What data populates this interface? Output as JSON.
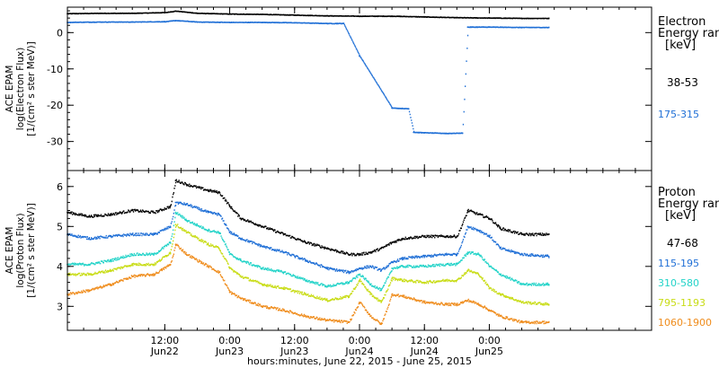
{
  "chart_data": [
    {
      "type": "scatter",
      "title": "",
      "ylabel_lines": [
        "ACE EPAM",
        "log(Electron Flux)",
        "[1/(cm² s ster MeV)]"
      ],
      "ylim": [
        -38,
        7
      ],
      "yticks": [
        0,
        -10,
        -20,
        -30
      ],
      "legend_title": [
        "Electron",
        "Energy  range",
        "[keV]"
      ],
      "legend_placement": "right",
      "series": [
        {
          "name": "38-53",
          "color": "#000000",
          "points": [
            [
              0,
              5.2
            ],
            [
              6,
              5.3
            ],
            [
              12,
              5.3
            ],
            [
              18,
              5.5
            ],
            [
              20,
              5.9
            ],
            [
              24,
              5.3
            ],
            [
              30,
              5.1
            ],
            [
              36,
              5.0
            ],
            [
              42,
              4.8
            ],
            [
              48,
              4.6
            ],
            [
              54,
              4.5
            ],
            [
              60,
              4.5
            ],
            [
              66,
              4.3
            ],
            [
              72,
              4.1
            ],
            [
              78,
              4.0
            ],
            [
              84,
              3.9
            ],
            [
              89,
              3.9
            ]
          ]
        },
        {
          "name": "175-315",
          "color": "#1f6fd6",
          "points": [
            [
              0,
              2.8
            ],
            [
              6,
              2.9
            ],
            [
              12,
              2.9
            ],
            [
              18,
              3.0
            ],
            [
              20,
              3.3
            ],
            [
              24,
              2.9
            ],
            [
              30,
              2.8
            ],
            [
              36,
              2.8
            ],
            [
              42,
              2.7
            ],
            [
              48,
              2.5
            ],
            [
              51,
              2.5
            ],
            [
              54,
              -6.5
            ],
            [
              60,
              -20.8
            ],
            [
              63,
              -21.0
            ],
            [
              64,
              -27.5
            ],
            [
              66,
              -27.6
            ],
            [
              70,
              -27.8
            ],
            [
              73,
              -27.7
            ],
            [
              74,
              1.5
            ],
            [
              78,
              1.5
            ],
            [
              84,
              1.4
            ],
            [
              89,
              1.4
            ]
          ]
        }
      ]
    },
    {
      "type": "scatter",
      "title": "",
      "ylabel_lines": [
        "ACE EPAM",
        "log(Proton Flux)",
        "[1/(cm² s ster MeV)]"
      ],
      "ylim": [
        2.4,
        6.4
      ],
      "yticks": [
        6,
        5,
        4,
        3
      ],
      "legend_title": [
        "Proton",
        "Energy  range",
        "[keV]"
      ],
      "legend_placement": "right",
      "series": [
        {
          "name": "47-68",
          "color": "#000000",
          "points": [
            [
              0,
              5.35
            ],
            [
              4,
              5.25
            ],
            [
              8,
              5.3
            ],
            [
              12,
              5.4
            ],
            [
              16,
              5.35
            ],
            [
              19,
              5.5
            ],
            [
              20,
              6.15
            ],
            [
              22,
              6.05
            ],
            [
              26,
              5.9
            ],
            [
              28,
              5.85
            ],
            [
              30,
              5.5
            ],
            [
              32,
              5.2
            ],
            [
              36,
              5.0
            ],
            [
              40,
              4.8
            ],
            [
              44,
              4.6
            ],
            [
              48,
              4.45
            ],
            [
              52,
              4.3
            ],
            [
              54,
              4.3
            ],
            [
              56,
              4.35
            ],
            [
              58,
              4.45
            ],
            [
              60,
              4.6
            ],
            [
              62,
              4.7
            ],
            [
              66,
              4.75
            ],
            [
              70,
              4.75
            ],
            [
              72,
              4.75
            ],
            [
              74,
              5.4
            ],
            [
              76,
              5.3
            ],
            [
              78,
              5.2
            ],
            [
              80,
              4.95
            ],
            [
              84,
              4.8
            ],
            [
              89,
              4.8
            ]
          ]
        },
        {
          "name": "115-195",
          "color": "#1f6fd6",
          "points": [
            [
              0,
              4.8
            ],
            [
              4,
              4.7
            ],
            [
              8,
              4.75
            ],
            [
              12,
              4.8
            ],
            [
              16,
              4.8
            ],
            [
              19,
              5.0
            ],
            [
              20,
              5.6
            ],
            [
              22,
              5.55
            ],
            [
              26,
              5.35
            ],
            [
              28,
              5.3
            ],
            [
              30,
              4.85
            ],
            [
              32,
              4.7
            ],
            [
              36,
              4.5
            ],
            [
              40,
              4.35
            ],
            [
              44,
              4.15
            ],
            [
              48,
              3.95
            ],
            [
              52,
              3.85
            ],
            [
              54,
              3.95
            ],
            [
              56,
              4.0
            ],
            [
              58,
              3.9
            ],
            [
              60,
              4.1
            ],
            [
              62,
              4.2
            ],
            [
              66,
              4.25
            ],
            [
              70,
              4.3
            ],
            [
              72,
              4.3
            ],
            [
              74,
              5.0
            ],
            [
              76,
              4.9
            ],
            [
              78,
              4.75
            ],
            [
              80,
              4.45
            ],
            [
              84,
              4.3
            ],
            [
              89,
              4.25
            ]
          ]
        },
        {
          "name": "310-580",
          "color": "#22d3c8",
          "points": [
            [
              0,
              4.05
            ],
            [
              4,
              4.05
            ],
            [
              8,
              4.15
            ],
            [
              12,
              4.3
            ],
            [
              16,
              4.3
            ],
            [
              19,
              4.6
            ],
            [
              20,
              5.35
            ],
            [
              22,
              5.15
            ],
            [
              26,
              4.9
            ],
            [
              28,
              4.85
            ],
            [
              30,
              4.3
            ],
            [
              32,
              4.15
            ],
            [
              36,
              3.95
            ],
            [
              40,
              3.85
            ],
            [
              44,
              3.65
            ],
            [
              48,
              3.5
            ],
            [
              52,
              3.6
            ],
            [
              54,
              3.8
            ],
            [
              56,
              3.55
            ],
            [
              58,
              3.4
            ],
            [
              60,
              3.95
            ],
            [
              62,
              4.0
            ],
            [
              66,
              4.0
            ],
            [
              70,
              4.05
            ],
            [
              72,
              4.05
            ],
            [
              74,
              4.35
            ],
            [
              76,
              4.3
            ],
            [
              78,
              4.0
            ],
            [
              80,
              3.8
            ],
            [
              84,
              3.55
            ],
            [
              89,
              3.55
            ]
          ]
        },
        {
          "name": "795-1193",
          "color": "#c8dc14",
          "points": [
            [
              0,
              3.8
            ],
            [
              4,
              3.8
            ],
            [
              8,
              3.9
            ],
            [
              12,
              4.05
            ],
            [
              16,
              4.05
            ],
            [
              19,
              4.35
            ],
            [
              20,
              5.05
            ],
            [
              22,
              4.85
            ],
            [
              26,
              4.55
            ],
            [
              28,
              4.45
            ],
            [
              30,
              3.95
            ],
            [
              32,
              3.75
            ],
            [
              36,
              3.55
            ],
            [
              40,
              3.45
            ],
            [
              44,
              3.3
            ],
            [
              48,
              3.15
            ],
            [
              52,
              3.25
            ],
            [
              54,
              3.65
            ],
            [
              56,
              3.3
            ],
            [
              58,
              3.1
            ],
            [
              60,
              3.7
            ],
            [
              62,
              3.65
            ],
            [
              66,
              3.6
            ],
            [
              70,
              3.65
            ],
            [
              72,
              3.65
            ],
            [
              74,
              3.9
            ],
            [
              76,
              3.8
            ],
            [
              78,
              3.45
            ],
            [
              80,
              3.3
            ],
            [
              84,
              3.1
            ],
            [
              89,
              3.05
            ]
          ]
        },
        {
          "name": "1060-1900",
          "color": "#ef8c1c",
          "points": [
            [
              0,
              3.3
            ],
            [
              4,
              3.4
            ],
            [
              8,
              3.55
            ],
            [
              12,
              3.75
            ],
            [
              16,
              3.8
            ],
            [
              19,
              4.05
            ],
            [
              20,
              4.55
            ],
            [
              22,
              4.3
            ],
            [
              26,
              4.0
            ],
            [
              28,
              3.85
            ],
            [
              30,
              3.35
            ],
            [
              32,
              3.2
            ],
            [
              36,
              3.0
            ],
            [
              40,
              2.9
            ],
            [
              44,
              2.75
            ],
            [
              48,
              2.65
            ],
            [
              52,
              2.6
            ],
            [
              54,
              3.1
            ],
            [
              56,
              2.75
            ],
            [
              58,
              2.55
            ],
            [
              60,
              3.3
            ],
            [
              62,
              3.25
            ],
            [
              66,
              3.1
            ],
            [
              70,
              3.05
            ],
            [
              72,
              3.05
            ],
            [
              74,
              3.15
            ],
            [
              76,
              3.05
            ],
            [
              78,
              2.9
            ],
            [
              80,
              2.75
            ],
            [
              84,
              2.6
            ],
            [
              89,
              2.6
            ]
          ]
        }
      ]
    }
  ],
  "x_axis": {
    "unit": "hours since 2015-06-21 18:00 UT",
    "xlim": [
      0,
      108
    ],
    "ticks": [
      {
        "x": 18,
        "time": "12:00",
        "day": "Jun22"
      },
      {
        "x": 30,
        "time": "0:00",
        "day": "Jun23"
      },
      {
        "x": 42,
        "time": "12:00",
        "day": "Jun23"
      },
      {
        "x": 54,
        "time": "0:00",
        "day": "Jun24"
      },
      {
        "x": 66,
        "time": "12:00",
        "day": "Jun24"
      },
      {
        "x": 78,
        "time": "0:00",
        "day": "Jun25"
      }
    ],
    "minor_every": 3,
    "label": "hours:minutes, June 22, 2015 - June 25, 2015"
  }
}
